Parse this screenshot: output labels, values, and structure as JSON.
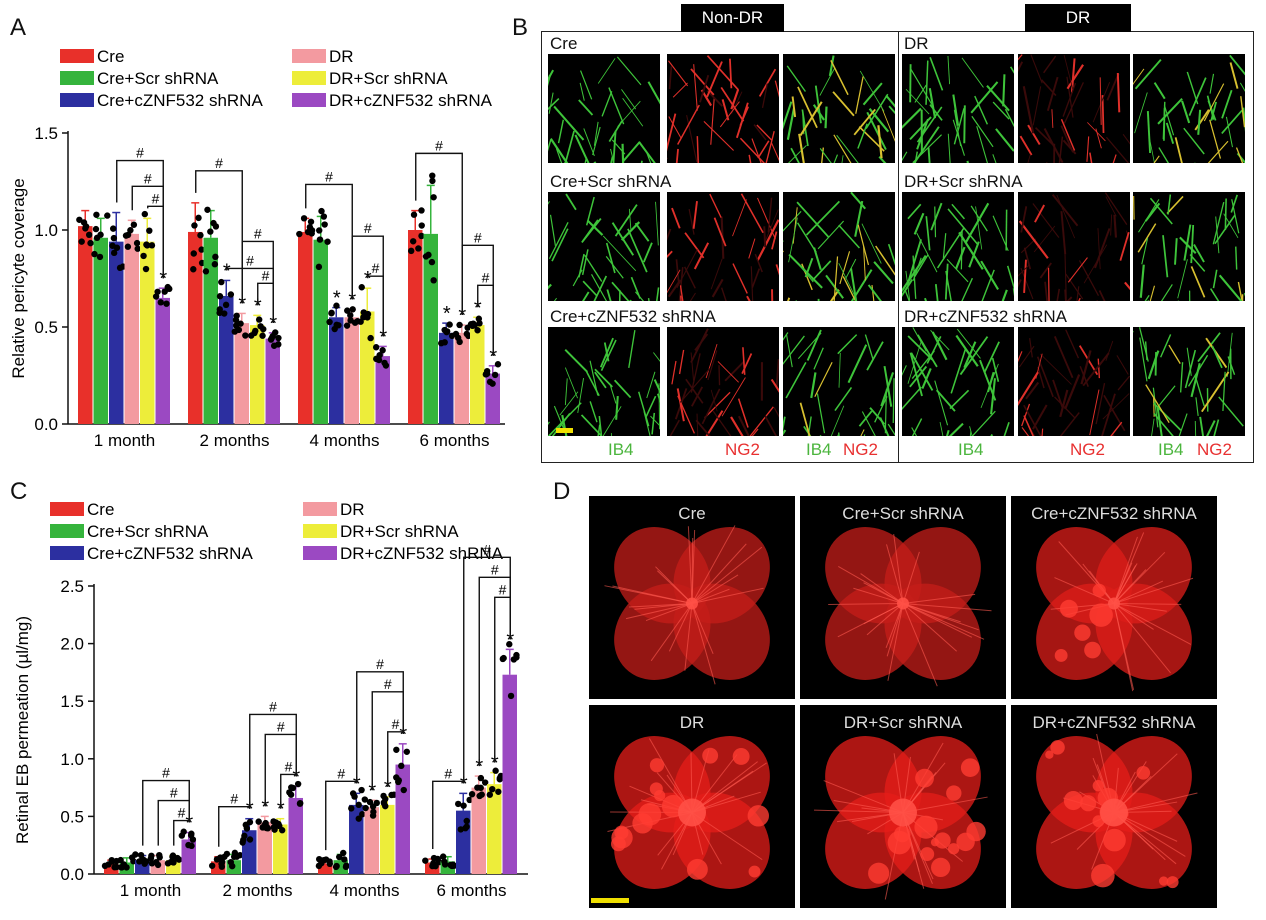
{
  "panels": {
    "a": "A",
    "b": "B",
    "c": "C",
    "d": "D"
  },
  "colors": {
    "Cre": "#e8302a",
    "Cre+Scr shRNA": "#35b43c",
    "Cre+cZNF532 shRNA": "#2c2fa0",
    "DR": "#f39aa0",
    "DR+Scr shRNA": "#eded3a",
    "DR+cZNF532 shRNA": "#9b49c2"
  },
  "legend": {
    "left": [
      "Cre",
      "Cre+Scr shRNA",
      "Cre+cZNF532 shRNA"
    ],
    "right": [
      "DR",
      "DR+Scr shRNA",
      "DR+cZNF532 shRNA"
    ]
  },
  "significance": {
    "hash": "#",
    "star": "*"
  },
  "chart_data": [
    {
      "type": "bar",
      "panel": "A",
      "title": "",
      "xlabel": "",
      "ylabel": "Relative pericyte coverage",
      "ylim": [
        0,
        1.5
      ],
      "yticks": [
        "0.0",
        "0.5",
        "1.0",
        "1.5"
      ],
      "categories": [
        "1 month",
        "2 months",
        "4 months",
        "6 months"
      ],
      "series": [
        {
          "name": "Cre",
          "values": [
            1.02,
            0.99,
            0.99,
            1.0
          ],
          "err": [
            0.08,
            0.15,
            0.07,
            0.1
          ]
        },
        {
          "name": "Cre+Scr shRNA",
          "values": [
            0.96,
            0.96,
            0.95,
            0.98
          ],
          "err": [
            0.1,
            0.14,
            0.12,
            0.25
          ]
        },
        {
          "name": "Cre+cZNF532 shRNA",
          "values": [
            0.94,
            0.66,
            0.55,
            0.47
          ],
          "err": [
            0.15,
            0.08,
            0.05,
            0.05
          ]
        },
        {
          "name": "DR",
          "values": [
            0.98,
            0.52,
            0.55,
            0.47
          ],
          "err": [
            0.07,
            0.05,
            0.04,
            0.04
          ]
        },
        {
          "name": "DR+Scr shRNA",
          "values": [
            0.94,
            0.51,
            0.58,
            0.51
          ],
          "err": [
            0.12,
            0.05,
            0.12,
            0.04
          ]
        },
        {
          "name": "DR+cZNF532 shRNA",
          "values": [
            0.65,
            0.44,
            0.35,
            0.26
          ],
          "err": [
            0.05,
            0.03,
            0.05,
            0.04
          ]
        }
      ]
    },
    {
      "type": "bar",
      "panel": "C",
      "title": "",
      "xlabel": "",
      "ylabel": "Retinal EB permeation (µl/mg)",
      "ylim": [
        0,
        2.5
      ],
      "yticks": [
        "0.0",
        "0.5",
        "1.0",
        "1.5",
        "2.0",
        "2.5"
      ],
      "categories": [
        "1 month",
        "2 months",
        "4 months",
        "6 months"
      ],
      "series": [
        {
          "name": "Cre",
          "values": [
            0.09,
            0.11,
            0.09,
            0.1
          ],
          "err": [
            0.03,
            0.04,
            0.03,
            0.03
          ]
        },
        {
          "name": "Cre+Scr shRNA",
          "values": [
            0.1,
            0.12,
            0.12,
            0.11
          ],
          "err": [
            0.04,
            0.05,
            0.05,
            0.04
          ]
        },
        {
          "name": "Cre+cZNF532 shRNA",
          "values": [
            0.12,
            0.38,
            0.6,
            0.55
          ],
          "err": [
            0.04,
            0.1,
            0.1,
            0.15
          ]
        },
        {
          "name": "DR",
          "values": [
            0.12,
            0.45,
            0.58,
            0.75
          ],
          "err": [
            0.04,
            0.05,
            0.06,
            0.1
          ]
        },
        {
          "name": "DR+Scr shRNA",
          "values": [
            0.12,
            0.43,
            0.6,
            0.78
          ],
          "err": [
            0.04,
            0.05,
            0.07,
            0.1
          ]
        },
        {
          "name": "DR+cZNF532 shRNA",
          "values": [
            0.3,
            0.66,
            0.95,
            1.73
          ],
          "err": [
            0.06,
            0.1,
            0.18,
            0.22
          ]
        }
      ]
    }
  ],
  "panel_b": {
    "header_left": "Non-DR",
    "header_right": "DR",
    "rows_left": [
      "Cre",
      "Cre+Scr shRNA",
      "Cre+cZNF532 shRNA"
    ],
    "rows_right": [
      "DR",
      "DR+Scr shRNA",
      "DR+cZNF532 shRNA"
    ],
    "stain_ib4": "IB4",
    "stain_ng2": "NG2"
  },
  "panel_d": {
    "labels": [
      "Cre",
      "Cre+Scr shRNA",
      "Cre+cZNF532 shRNA",
      "DR",
      "DR+Scr shRNA",
      "DR+cZNF532 shRNA"
    ]
  }
}
